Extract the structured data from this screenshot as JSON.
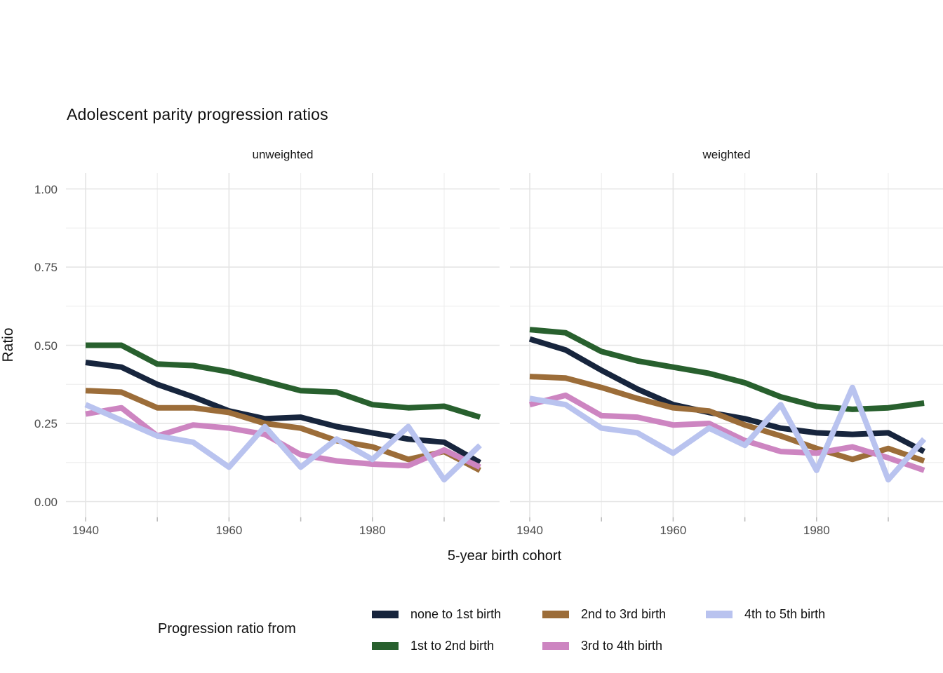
{
  "title": "Adolescent parity progression ratios",
  "y_axis": {
    "label": "Ratio",
    "ticks": [
      "1.00",
      "0.75",
      "0.50",
      "0.25",
      "0.00"
    ],
    "tick_values": [
      1.0,
      0.75,
      0.5,
      0.25,
      0.0
    ]
  },
  "x_axis": {
    "label": "5-year birth cohort",
    "ticks": [
      "1940",
      "1960",
      "1980"
    ],
    "tick_values": [
      1940,
      1960,
      1980
    ]
  },
  "facets": [
    {
      "label": "unweighted"
    },
    {
      "label": "weighted"
    }
  ],
  "legend": {
    "title": "Progression ratio from",
    "items": [
      {
        "label": "none to 1st birth",
        "color": "#17253d"
      },
      {
        "label": "1st to 2nd birth",
        "color": "#28602e"
      },
      {
        "label": "2nd to 3rd birth",
        "color": "#9c6d39"
      },
      {
        "label": "3rd to 4th birth",
        "color": "#cd85c1"
      },
      {
        "label": "4th to 5th birth",
        "color": "#b9c3ef"
      }
    ]
  },
  "colors": {
    "grid_major": "#e4e4e4",
    "grid_minor": "#efefef",
    "axis_text": "#4d4d4d",
    "tick_mark": "#b8b8b8"
  },
  "chart_data": {
    "type": "line",
    "title": "Adolescent parity progression ratios",
    "xlabel": "5-year birth cohort",
    "ylabel": "Ratio",
    "ylim": [
      0,
      1
    ],
    "x": [
      1940,
      1945,
      1950,
      1955,
      1960,
      1965,
      1970,
      1975,
      1980,
      1985,
      1990,
      1995
    ],
    "x_major_ticks": [
      1940,
      1960,
      1980
    ],
    "x_minor_gridlines": [
      1950,
      1970,
      1990
    ],
    "y_major_ticks": [
      0,
      0.25,
      0.5,
      0.75,
      1.0
    ],
    "grid": true,
    "legend_position": "bottom",
    "panels": [
      {
        "label": "unweighted",
        "series": [
          {
            "name": "none to 1st birth",
            "color": "#17253d",
            "values": [
              0.445,
              0.43,
              0.375,
              0.335,
              0.29,
              0.265,
              0.27,
              0.24,
              0.22,
              0.2,
              0.19,
              0.125
            ]
          },
          {
            "name": "1st to 2nd birth",
            "color": "#28602e",
            "values": [
              0.5,
              0.5,
              0.44,
              0.435,
              0.415,
              0.385,
              0.355,
              0.35,
              0.31,
              0.3,
              0.305,
              0.27
            ]
          },
          {
            "name": "2nd to 3rd birth",
            "color": "#9c6d39",
            "values": [
              0.355,
              0.35,
              0.3,
              0.3,
              0.285,
              0.25,
              0.235,
              0.195,
              0.175,
              0.135,
              0.16,
              0.1
            ]
          },
          {
            "name": "3rd to 4th birth",
            "color": "#cd85c1",
            "values": [
              0.28,
              0.3,
              0.21,
              0.245,
              0.235,
              0.215,
              0.15,
              0.13,
              0.12,
              0.115,
              0.165,
              0.11
            ]
          },
          {
            "name": "4th to 5th birth",
            "color": "#b9c3ef",
            "values": [
              0.31,
              0.26,
              0.21,
              0.19,
              0.11,
              0.24,
              0.11,
              0.2,
              0.135,
              0.24,
              0.07,
              0.18
            ]
          }
        ]
      },
      {
        "label": "weighted",
        "series": [
          {
            "name": "none to 1st birth",
            "color": "#17253d",
            "values": [
              0.52,
              0.485,
              0.42,
              0.36,
              0.31,
              0.285,
              0.265,
              0.235,
              0.22,
              0.215,
              0.22,
              0.16
            ]
          },
          {
            "name": "1st to 2nd birth",
            "color": "#28602e",
            "values": [
              0.55,
              0.54,
              0.48,
              0.45,
              0.43,
              0.41,
              0.38,
              0.335,
              0.305,
              0.295,
              0.3,
              0.315
            ]
          },
          {
            "name": "2nd to 3rd birth",
            "color": "#9c6d39",
            "values": [
              0.4,
              0.395,
              0.365,
              0.33,
              0.3,
              0.29,
              0.245,
              0.21,
              0.17,
              0.135,
              0.17,
              0.13
            ]
          },
          {
            "name": "3rd to 4th birth",
            "color": "#cd85c1",
            "values": [
              0.31,
              0.34,
              0.275,
              0.27,
              0.245,
              0.25,
              0.195,
              0.16,
              0.155,
              0.175,
              0.14,
              0.1
            ]
          },
          {
            "name": "4th to 5th birth",
            "color": "#b9c3ef",
            "values": [
              0.33,
              0.31,
              0.235,
              0.22,
              0.155,
              0.235,
              0.18,
              0.31,
              0.1,
              0.365,
              0.07,
              0.2
            ]
          }
        ]
      }
    ]
  }
}
